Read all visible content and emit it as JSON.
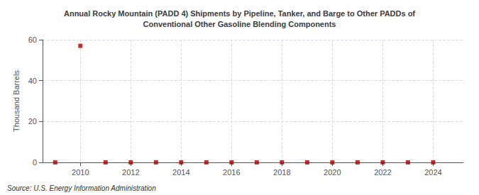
{
  "chart_data": {
    "type": "scatter",
    "title": "Annual Rocky Mountain (PADD 4) Shipments by Pipeline, Tanker, and Barge to Other PADDs of\nConventional Other Gasoline Blending Components",
    "ylabel": "Thousand Barrels",
    "source": "Source: U.S. Energy Information Administration",
    "x": [
      2009,
      2010,
      2011,
      2012,
      2013,
      2014,
      2015,
      2016,
      2017,
      2018,
      2019,
      2020,
      2021,
      2022,
      2023,
      2024
    ],
    "values": [
      0,
      57,
      0,
      0,
      0,
      0,
      0,
      0,
      0,
      0,
      0,
      0,
      0,
      0,
      0,
      0
    ],
    "color": "#aa0000",
    "marker": "square",
    "xlim": [
      2008.5,
      2025.2
    ],
    "xticks": [
      2010,
      2012,
      2014,
      2016,
      2018,
      2020,
      2022,
      2024
    ],
    "ylim": [
      0,
      60
    ],
    "yticks": [
      0,
      20,
      40,
      60
    ],
    "grid": true
  }
}
